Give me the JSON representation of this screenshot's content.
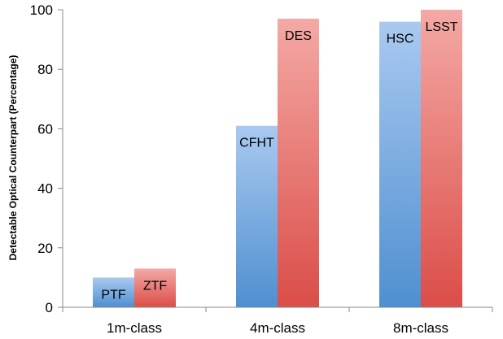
{
  "chart_data": {
    "type": "bar",
    "categories": [
      "1m-class",
      "4m-class",
      "8m-class"
    ],
    "series": [
      {
        "values": [
          10,
          61,
          96
        ],
        "bar_labels": [
          "PTF",
          "CFHT",
          "HSC"
        ],
        "color": "#5b9bd5"
      },
      {
        "values": [
          13,
          97,
          100
        ],
        "bar_labels": [
          "ZTF",
          "DES",
          "LSST"
        ],
        "color": "#e05a57"
      }
    ],
    "title": "",
    "xlabel": "",
    "ylabel": "Detectable Optical Counterpart (Percentage)",
    "ylim": [
      0,
      100
    ],
    "yticks": [
      "0",
      "20",
      "40",
      "60",
      "80",
      "100"
    ],
    "grid": false,
    "legend": "none"
  }
}
